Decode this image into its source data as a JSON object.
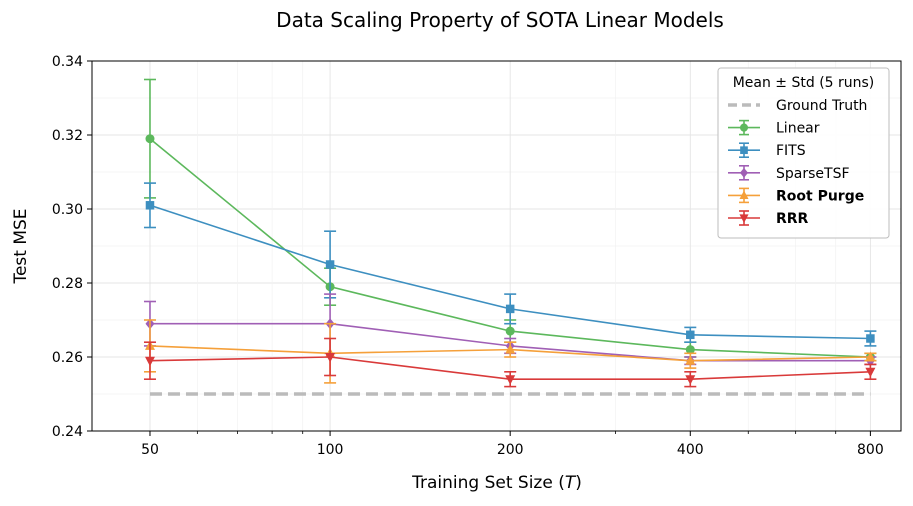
{
  "chart_data": {
    "type": "line",
    "title": "Data Scaling Property of SOTA Linear Models",
    "xlabel_main": "Training Set Size (",
    "xlabel_var": "T",
    "xlabel_end": ")",
    "ylabel": "Test MSE",
    "x_scale": "log",
    "x": [
      50,
      100,
      200,
      400,
      800
    ],
    "xticks": [
      "50",
      "100",
      "200",
      "400",
      "800"
    ],
    "yticks": [
      "0.24",
      "0.26",
      "0.28",
      "0.30",
      "0.32",
      "0.34"
    ],
    "ylim": [
      0.24,
      0.34
    ],
    "grid": true,
    "legend": {
      "title": "Mean ± Std (5 runs)",
      "position": "top-right"
    },
    "ground_truth": {
      "name": "Ground Truth",
      "value": 0.25,
      "color": "#bbbbbb"
    },
    "series": [
      {
        "name": "Linear",
        "color": "#5cb85c",
        "marker": "circle",
        "bold": false,
        "values": [
          0.319,
          0.279,
          0.267,
          0.262,
          0.26
        ],
        "std": [
          0.016,
          0.005,
          0.003,
          0.002,
          0.001
        ]
      },
      {
        "name": "FITS",
        "color": "#3d8fc0",
        "marker": "square",
        "bold": false,
        "values": [
          0.301,
          0.285,
          0.273,
          0.266,
          0.265
        ],
        "std": [
          0.006,
          0.009,
          0.004,
          0.002,
          0.002
        ]
      },
      {
        "name": "SparseTSF",
        "color": "#a05fb5",
        "marker": "diamond",
        "bold": false,
        "values": [
          0.269,
          0.269,
          0.263,
          0.259,
          0.259
        ],
        "std": [
          0.006,
          0.008,
          0.002,
          0.001,
          0.001
        ]
      },
      {
        "name": "Root Purge",
        "color": "#f5a03a",
        "marker": "triangle-up",
        "bold": true,
        "values": [
          0.263,
          0.261,
          0.262,
          0.259,
          0.26
        ],
        "std": [
          0.007,
          0.008,
          0.002,
          0.002,
          0.001
        ]
      },
      {
        "name": "RRR",
        "color": "#d93a3a",
        "marker": "triangle-down",
        "bold": true,
        "values": [
          0.259,
          0.26,
          0.254,
          0.254,
          0.256
        ],
        "std": [
          0.005,
          0.005,
          0.002,
          0.002,
          0.002
        ]
      }
    ]
  }
}
